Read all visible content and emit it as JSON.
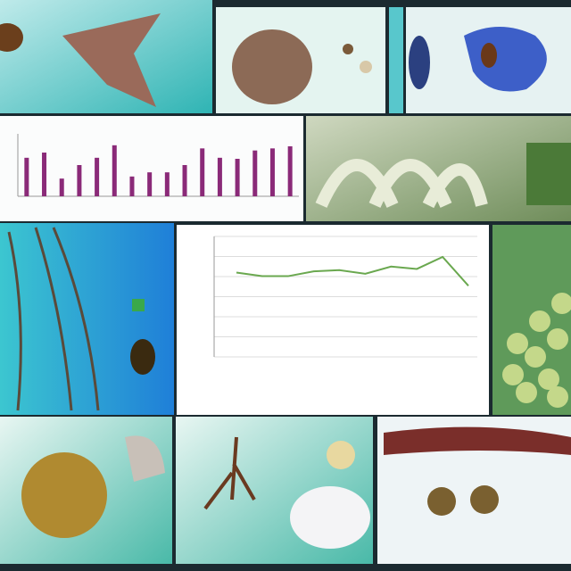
{
  "charts": [
    {
      "type": "bar",
      "color": "#8a2a78",
      "values": [
        37,
        42,
        17,
        30,
        37,
        49,
        19,
        23,
        23,
        30,
        46,
        37,
        36,
        44,
        46,
        48
      ],
      "ylim": [
        0,
        60
      ]
    },
    {
      "type": "line",
      "color": "#6aa84f",
      "values": [
        70,
        67,
        67,
        71,
        72,
        69,
        75,
        73,
        83,
        59
      ],
      "ylim": [
        0,
        100
      ],
      "grid": true
    }
  ]
}
